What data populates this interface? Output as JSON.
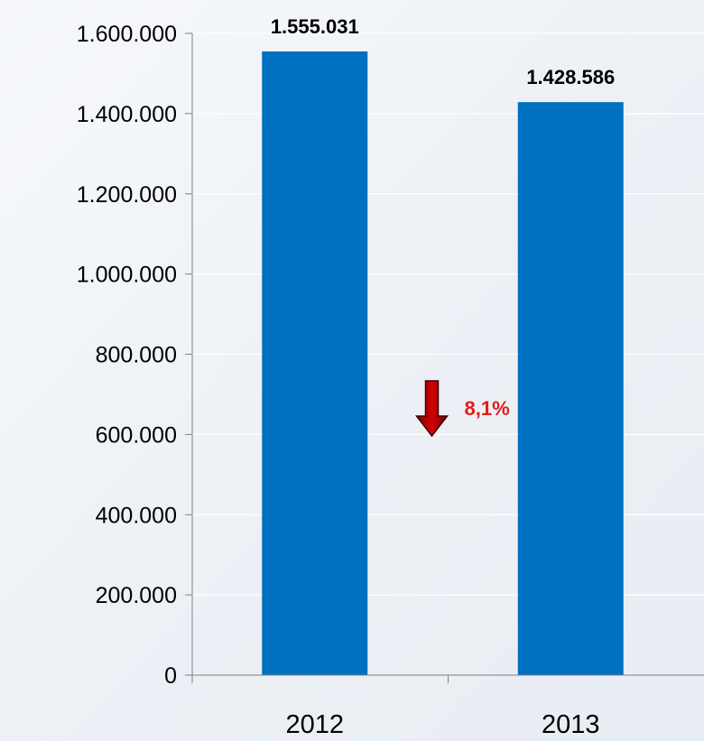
{
  "chart_data": {
    "type": "bar",
    "categories": [
      "2012",
      "2013"
    ],
    "values": [
      1555031,
      1428586
    ],
    "data_labels": [
      "1.555.031",
      "1.428.586"
    ],
    "ylim": [
      0,
      1600000
    ],
    "y_ticks": [
      {
        "value": 0,
        "label": "0"
      },
      {
        "value": 200000,
        "label": "200.000"
      },
      {
        "value": 400000,
        "label": "400.000"
      },
      {
        "value": 600000,
        "label": "600.000"
      },
      {
        "value": 800000,
        "label": "800.000"
      },
      {
        "value": 1000000,
        "label": "1.000.000"
      },
      {
        "value": 1200000,
        "label": "1.200.000"
      },
      {
        "value": 1400000,
        "label": "1.400.000"
      },
      {
        "value": 1600000,
        "label": "1.600.000"
      }
    ],
    "title": "",
    "xlabel": "",
    "ylabel": "",
    "grid": true,
    "bar_color": "#0070c0",
    "annotation": {
      "text": "8,1%",
      "direction": "down",
      "color": "#e31b1b",
      "arrow_color": "#c00000"
    }
  }
}
